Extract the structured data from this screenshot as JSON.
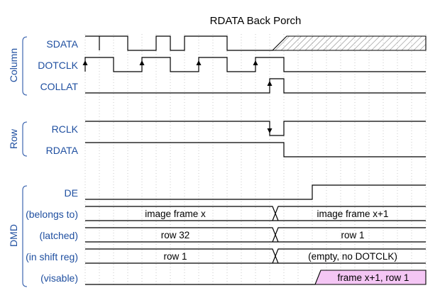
{
  "title": "RDATA Back Porch",
  "groups": [
    {
      "label": "Column",
      "signals": [
        {
          "label": "SDATA"
        },
        {
          "label": "DOTCLK"
        },
        {
          "label": "COLLAT"
        }
      ]
    },
    {
      "label": "Row",
      "signals": [
        {
          "label": "RCLK"
        },
        {
          "label": "RDATA"
        }
      ]
    },
    {
      "label": "DMD",
      "signals": [
        {
          "label": "DE"
        },
        {
          "label": "(belongs to)",
          "bus": [
            "image frame x",
            "image frame x+1"
          ]
        },
        {
          "label": "(latched)",
          "bus": [
            "row 32",
            "row 1"
          ]
        },
        {
          "label": "(in shift reg)",
          "bus": [
            "row 1",
            "(empty, no DOTCLK)"
          ]
        },
        {
          "label": "(visable)",
          "bus": [
            "frame x+1, row 1"
          ],
          "highlight_color": "#f4c6f4"
        }
      ]
    }
  ],
  "colors": {
    "label": "#1f4fa0",
    "wave": "#000000",
    "hatch": "#888888",
    "highlight": "#f4c6f4"
  }
}
